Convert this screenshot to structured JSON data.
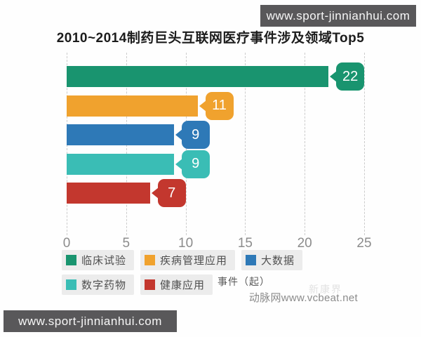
{
  "banners": {
    "top": "www.sport-jinnianhui.com",
    "bottom": "www.sport-jinnianhui.com"
  },
  "chart_data": {
    "type": "bar",
    "orientation": "horizontal",
    "title": "2010~2014制药巨头互联网医疗事件涉及领域Top5",
    "categories": [
      "临床试验",
      "疾病管理应用",
      "大数据",
      "数字药物",
      "健康应用"
    ],
    "values": [
      22,
      11,
      9,
      9,
      7
    ],
    "colors": [
      "#19946f",
      "#f0a22e",
      "#2e79b7",
      "#3abdb5",
      "#c3372e"
    ],
    "xlabel": "事件（起）",
    "xlim": [
      0,
      25
    ],
    "xticks": [
      0,
      5,
      10,
      15,
      20,
      25
    ],
    "grid": "vertical-dashed-gridlines",
    "legend_position": "bottom",
    "data_label_style": "speech-bubble"
  },
  "watermark": {
    "logo": "新康界",
    "source": "动脉网www.vcbeat.net"
  }
}
